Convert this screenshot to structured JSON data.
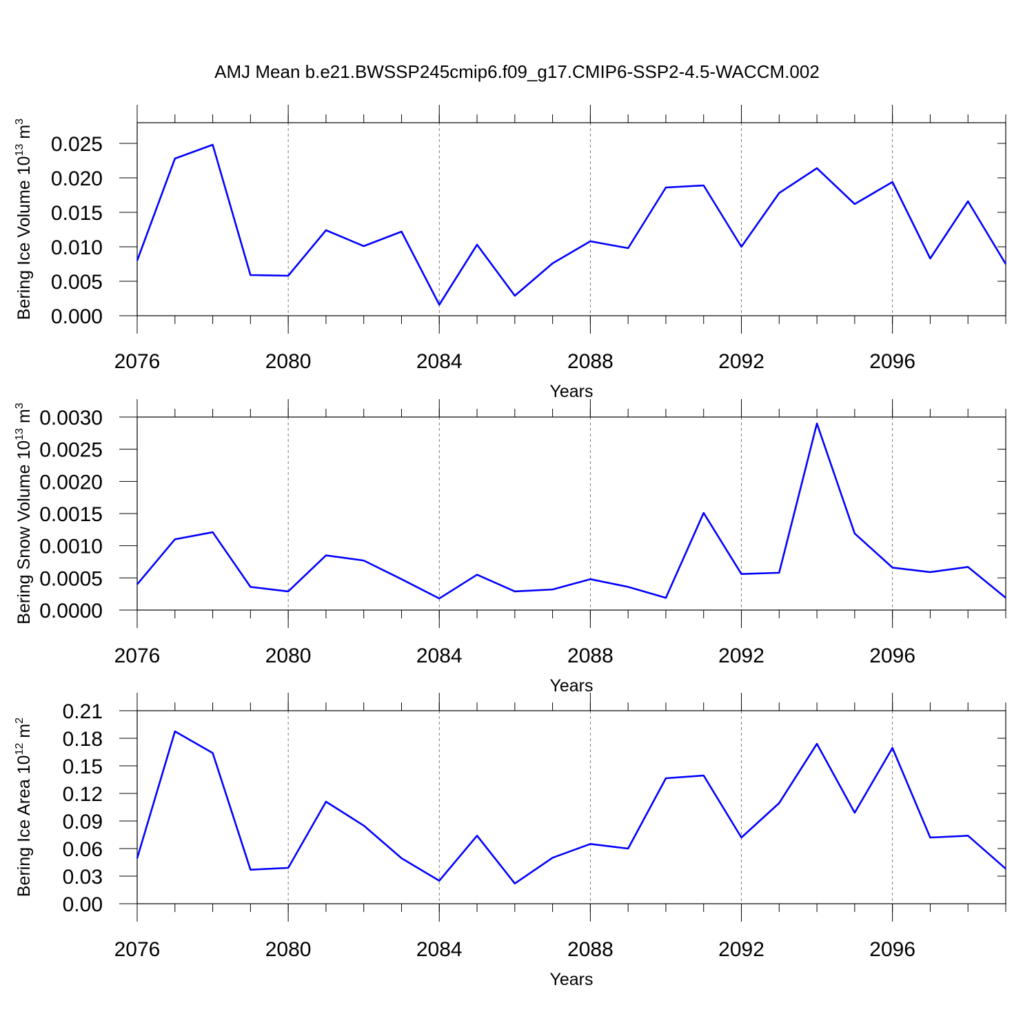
{
  "title": "AMJ Mean b.e21.BWSSP245cmip6.f09_g17.CMIP6-SSP2-4.5-WACCM.002",
  "chart_data": [
    {
      "type": "line",
      "ylabel": {
        "text": "Bering Ice Volume 10",
        "exp": "13",
        "unit": "m",
        "unit_exp": "3"
      },
      "xlabel": "Years",
      "x": [
        2076,
        2077,
        2078,
        2079,
        2080,
        2081,
        2082,
        2083,
        2084,
        2085,
        2086,
        2087,
        2088,
        2089,
        2090,
        2091,
        2092,
        2093,
        2094,
        2095,
        2096,
        2097,
        2098,
        2099
      ],
      "values": [
        0.008,
        0.0228,
        0.0248,
        0.0059,
        0.0058,
        0.0124,
        0.0101,
        0.0122,
        0.0016,
        0.0103,
        0.0029,
        0.0076,
        0.0108,
        0.0098,
        0.0186,
        0.0189,
        0.01,
        0.0178,
        0.0214,
        0.0162,
        0.0194,
        0.0083,
        0.0166,
        0.0075
      ],
      "color": "#0000ff",
      "xlim": [
        2076,
        2099
      ],
      "xticks": [
        2076,
        2080,
        2084,
        2088,
        2092,
        2096
      ],
      "ylim": [
        0,
        0.028
      ],
      "yticks": [
        {
          "value": 0,
          "label": "0.000"
        },
        0.005,
        {
          "value": 0.01,
          "label": "0.010"
        },
        0.015,
        {
          "value": 0.02,
          "label": "0.020"
        },
        0.025
      ],
      "grid": "x"
    },
    {
      "type": "line",
      "ylabel": {
        "text": "Bering Snow Volume 10",
        "exp": "13",
        "unit": "m",
        "unit_exp": "3"
      },
      "xlabel": "Years",
      "x": [
        2076,
        2077,
        2078,
        2079,
        2080,
        2081,
        2082,
        2083,
        2084,
        2085,
        2086,
        2087,
        2088,
        2089,
        2090,
        2091,
        2092,
        2093,
        2094,
        2095,
        2096,
        2097,
        2098,
        2099
      ],
      "values": [
        0.0004,
        0.0011,
        0.00121,
        0.00036,
        0.00029,
        0.00085,
        0.00077,
        0.00048,
        0.00018,
        0.00055,
        0.00029,
        0.00032,
        0.00048,
        0.00036,
        0.00019,
        0.00151,
        0.00056,
        0.00058,
        0.0029,
        0.00119,
        0.00066,
        0.00059,
        0.00067,
        0.00019
      ],
      "color": "#0000ff",
      "xlim": [
        2076,
        2099
      ],
      "xticks": [
        2076,
        2080,
        2084,
        2088,
        2092,
        2096
      ],
      "ylim": [
        0,
        0.003
      ],
      "yticks": [
        {
          "value": 0,
          "label": "0.0000"
        },
        0.0005,
        {
          "value": 0.001,
          "label": "0.0010"
        },
        0.0015,
        {
          "value": 0.002,
          "label": "0.0020"
        },
        0.0025,
        {
          "value": 0.003,
          "label": "0.0030"
        }
      ],
      "grid": "x"
    },
    {
      "type": "line",
      "ylabel": {
        "text": "Bering Ice Area 10",
        "exp": "12",
        "unit": "m",
        "unit_exp": "2"
      },
      "xlabel": "Years",
      "x": [
        2076,
        2077,
        2078,
        2079,
        2080,
        2081,
        2082,
        2083,
        2084,
        2085,
        2086,
        2087,
        2088,
        2089,
        2090,
        2091,
        2092,
        2093,
        2094,
        2095,
        2096,
        2097,
        2098,
        2099
      ],
      "values": [
        0.0495,
        0.1875,
        0.164,
        0.037,
        0.039,
        0.111,
        0.085,
        0.0495,
        0.025,
        0.074,
        0.022,
        0.05,
        0.065,
        0.06,
        0.1365,
        0.1395,
        0.072,
        0.1095,
        0.174,
        0.099,
        0.1695,
        0.072,
        0.074,
        0.038
      ],
      "color": "#0000ff",
      "xlim": [
        2076,
        2099
      ],
      "xticks": [
        2076,
        2080,
        2084,
        2088,
        2092,
        2096
      ],
      "ylim": [
        0,
        0.21
      ],
      "yticks": [
        {
          "value": 0,
          "label": "0.00"
        },
        0.03,
        0.06,
        0.09,
        0.12,
        0.15,
        0.18,
        0.21
      ],
      "grid": "x"
    }
  ]
}
